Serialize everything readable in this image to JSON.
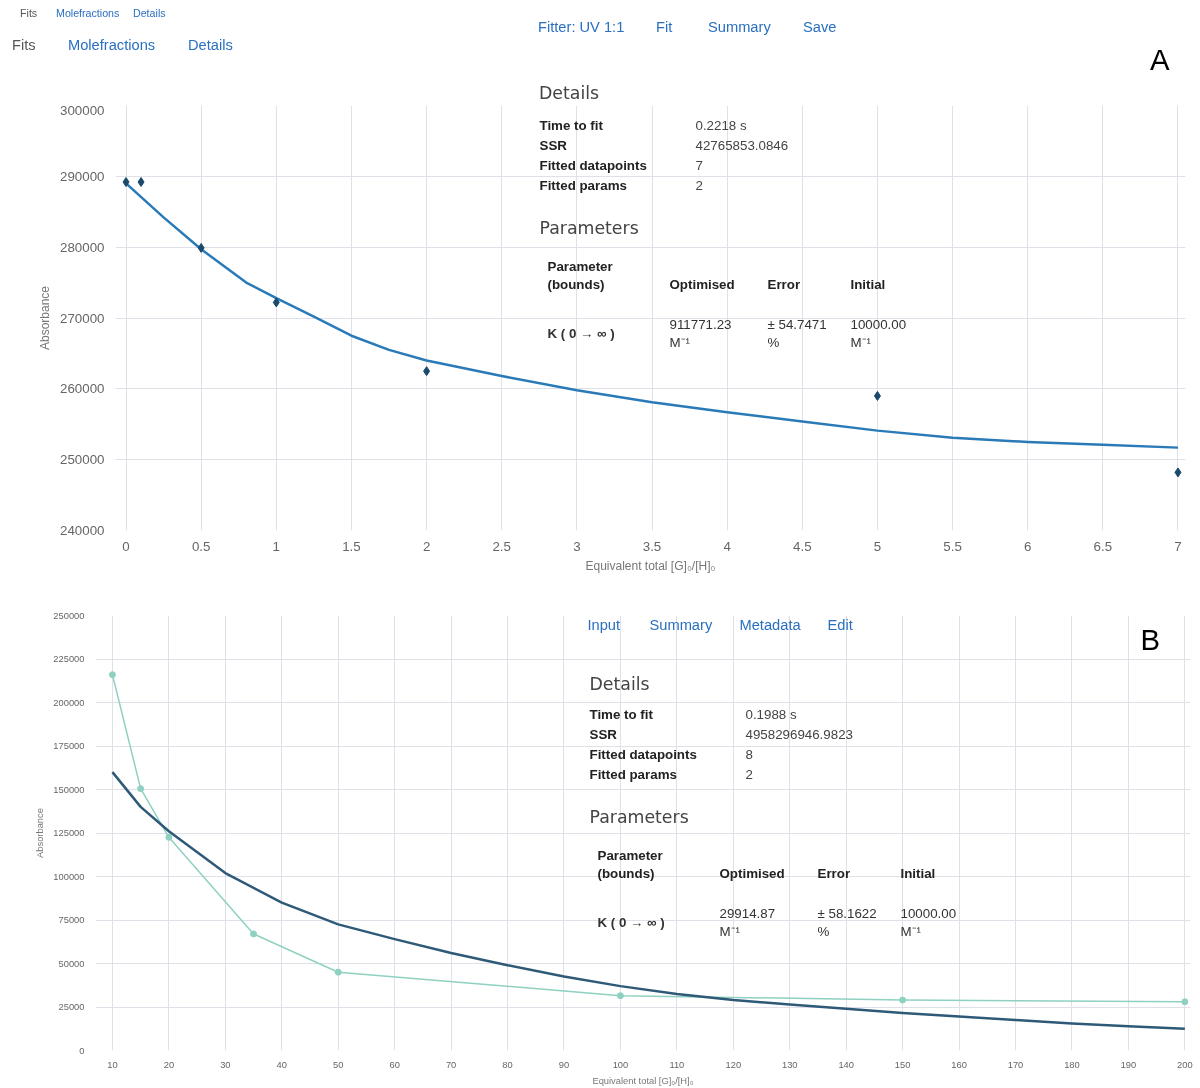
{
  "chart_data": [
    {
      "type": "line",
      "xlabel": "Equivalent total [G]₀/[H]₀",
      "ylabel": "Absorbance",
      "xlim": [
        -0.07,
        7.05
      ],
      "ylim": [
        240000,
        300000
      ],
      "xticks": [
        0,
        0.5,
        1,
        1.5,
        2,
        2.5,
        3,
        3.5,
        4,
        4.5,
        5,
        5.5,
        6,
        6.5,
        7
      ],
      "yticks": [
        240000,
        250000,
        260000,
        270000,
        280000,
        290000,
        300000
      ],
      "grid": true,
      "series": [
        {
          "type": "line",
          "color": "#2a7ab8",
          "x": [
            0,
            0.25,
            0.5,
            0.8,
            1,
            1.25,
            1.5,
            1.75,
            2,
            2.5,
            3,
            3.5,
            4,
            4.5,
            5,
            5.5,
            6,
            6.5,
            7
          ],
          "values": [
            289000,
            284200,
            279700,
            275000,
            272800,
            270200,
            267500,
            265500,
            264000,
            261800,
            259800,
            258100,
            256700,
            255400,
            254100,
            253100,
            252500,
            252100,
            251700
          ]
        },
        {
          "type": "scatter",
          "marker": "diamond",
          "color": "#1a4a6a",
          "x": [
            0,
            0.1,
            0.5,
            1,
            2,
            5,
            7
          ],
          "values": [
            289200,
            289200,
            279900,
            272200,
            262500,
            259000,
            248200
          ]
        }
      ],
      "annotations": [
        "Fits",
        "Molefractions",
        "Details",
        "Fitter: UV 1:1",
        "Fit",
        "Summary",
        "Save",
        "Details",
        "Time to fit",
        "0.2218 s",
        "SSR",
        "42765853.0846",
        "Fitted datapoints",
        "7",
        "Fitted params",
        "2",
        "Parameters",
        "Parameter\n(bounds)",
        "Optimised",
        "Error",
        "Initial",
        "K ( 0 → ∞ )",
        "911771.23\nM⁻¹",
        "± 54.7471\n%",
        "10000.00\nM⁻¹",
        "A"
      ]
    },
    {
      "type": "line",
      "xlabel": "Equivalent total [G]₀/[H]₀",
      "ylabel": "Absorbance",
      "xlim": [
        7,
        201
      ],
      "ylim": [
        0,
        250000
      ],
      "xticks": [
        10,
        20,
        30,
        40,
        50,
        60,
        70,
        80,
        90,
        100,
        110,
        120,
        130,
        140,
        150,
        160,
        170,
        180,
        190,
        200
      ],
      "yticks": [
        0,
        25000,
        50000,
        75000,
        100000,
        125000,
        150000,
        175000,
        200000,
        225000,
        250000
      ],
      "grid": true,
      "series": [
        {
          "type": "line",
          "marker": "circle",
          "color": "#8fd1c0",
          "x": [
            10,
            15,
            20,
            35,
            50,
            100,
            150,
            200
          ],
          "values": [
            216000,
            150500,
            122500,
            67000,
            45000,
            31500,
            29000,
            28000
          ]
        },
        {
          "type": "line",
          "color": "#2e5a78",
          "x": [
            10,
            15,
            20,
            30,
            40,
            50,
            60,
            70,
            80,
            90,
            100,
            110,
            120,
            130,
            140,
            150,
            160,
            170,
            180,
            190,
            200
          ],
          "values": [
            160000,
            140000,
            126000,
            102000,
            85000,
            72500,
            64000,
            56000,
            49000,
            42500,
            37000,
            32500,
            29000,
            26500,
            24000,
            21500,
            19500,
            17500,
            15500,
            14000,
            12500
          ]
        }
      ],
      "annotations": [
        "Fits",
        "Molefractions",
        "Details",
        "Input",
        "Summary",
        "Metadata",
        "Edit",
        "Details",
        "Time to fit",
        "0.1988 s",
        "SSR",
        "4958296946.9823",
        "Fitted datapoints",
        "8",
        "Fitted params",
        "2",
        "Parameters",
        "Parameter\n(bounds)",
        "Optimised",
        "Error",
        "Initial",
        "K ( 0 → ∞ )",
        "29914.87\nM⁻¹",
        "± 58.1622\n%",
        "10000.00\nM⁻¹",
        "B"
      ]
    }
  ]
}
